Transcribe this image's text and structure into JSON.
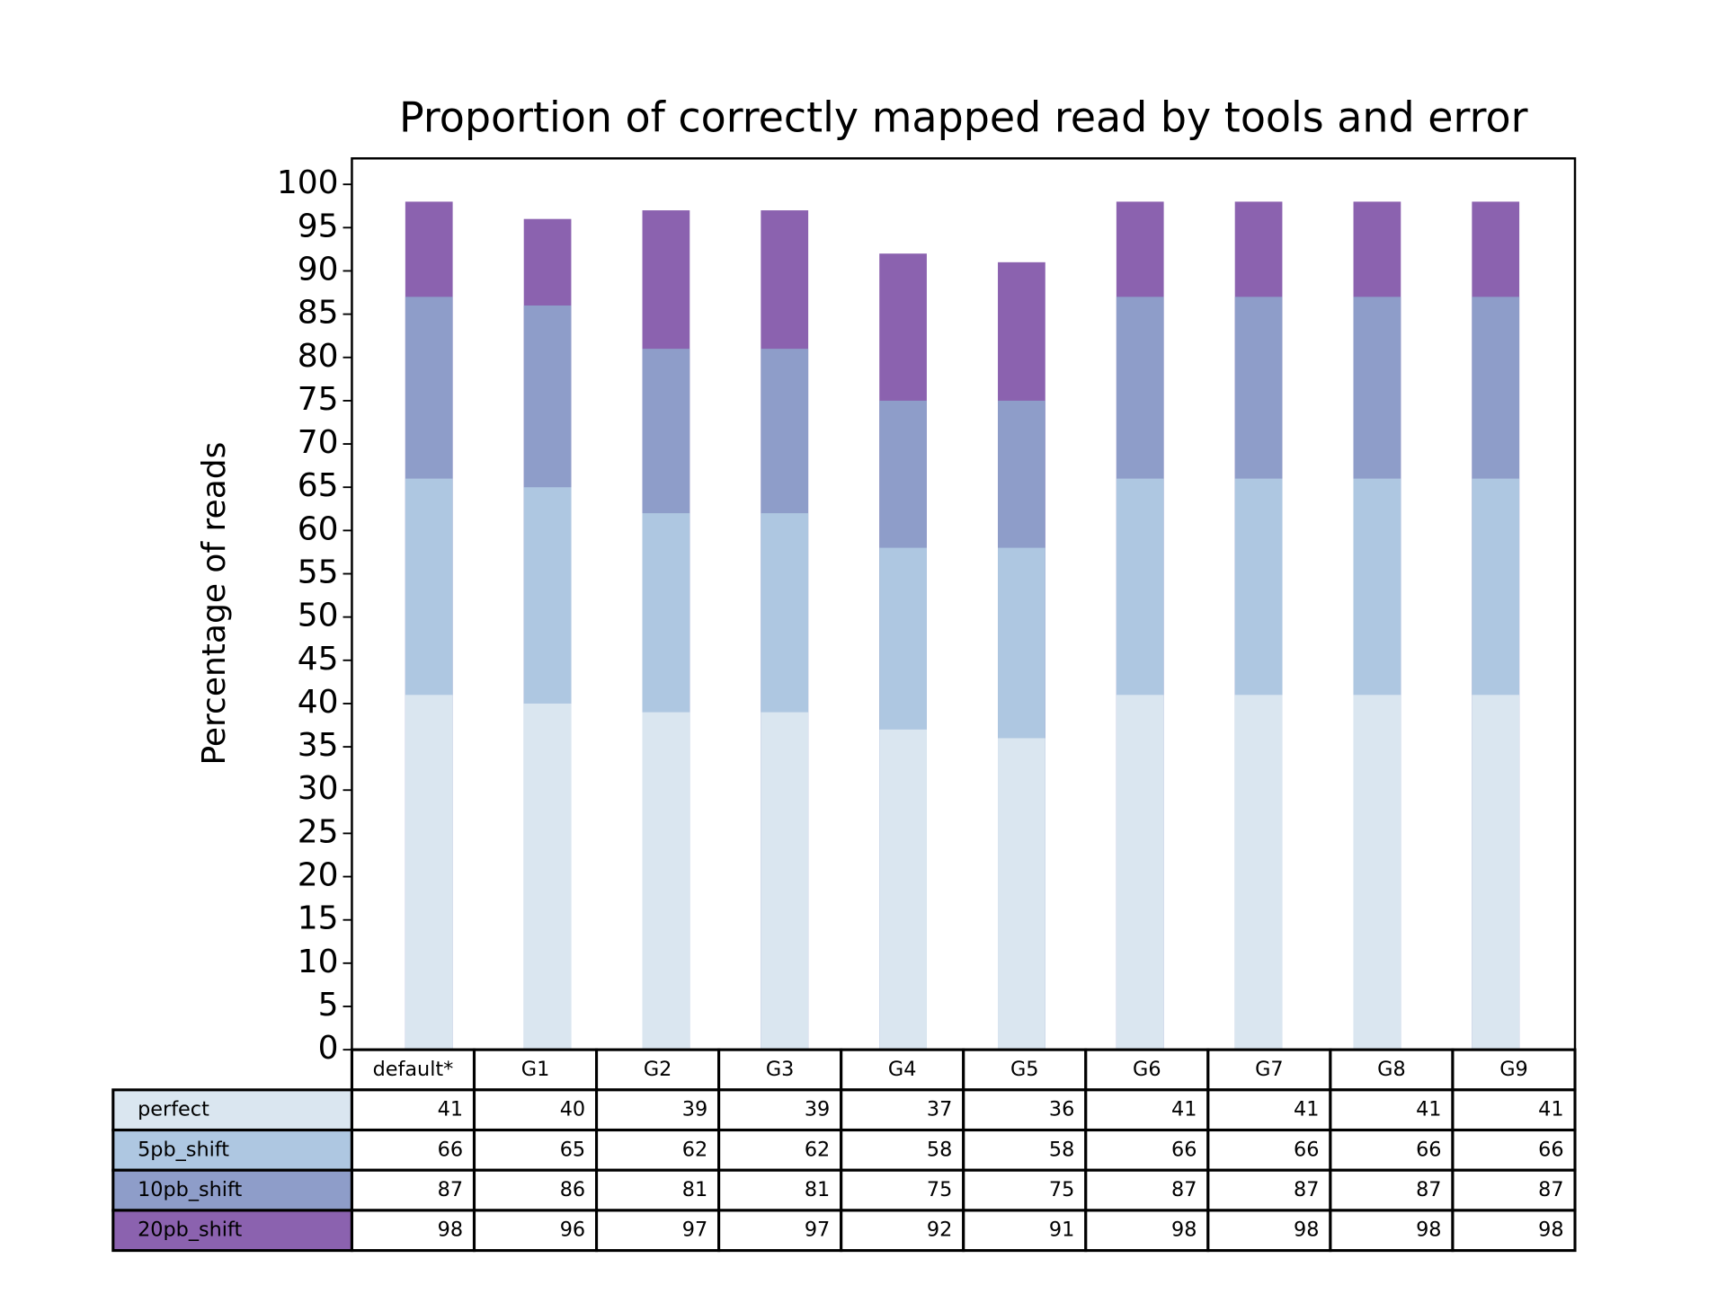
{
  "chart_data": {
    "type": "bar",
    "title": "Proportion of correctly mapped read by tools and error",
    "y_label": "Percentage of reads",
    "categories": [
      "default*",
      "G1",
      "G2",
      "G3",
      "G4",
      "G5",
      "G6",
      "G7",
      "G8",
      "G9"
    ],
    "series": [
      {
        "name": "perfect",
        "color": "#dae6f0",
        "values": [
          41,
          40,
          39,
          39,
          37,
          36,
          41,
          41,
          41,
          41
        ]
      },
      {
        "name": "5pb_shift",
        "color": "#aec7e1",
        "values": [
          66,
          65,
          62,
          62,
          58,
          58,
          66,
          66,
          66,
          66
        ]
      },
      {
        "name": "10pb_shift",
        "color": "#8e9dc9",
        "values": [
          87,
          86,
          81,
          81,
          75,
          75,
          87,
          87,
          87,
          87
        ]
      },
      {
        "name": "20pb_shift",
        "color": "#8b62af",
        "values": [
          98,
          96,
          97,
          97,
          92,
          91,
          98,
          98,
          98,
          98
        ]
      }
    ],
    "ylim": [
      0,
      103
    ],
    "yticks": [
      0,
      5,
      10,
      15,
      20,
      25,
      30,
      35,
      40,
      45,
      50,
      55,
      60,
      65,
      70,
      75,
      80,
      85,
      90,
      95,
      100
    ]
  }
}
